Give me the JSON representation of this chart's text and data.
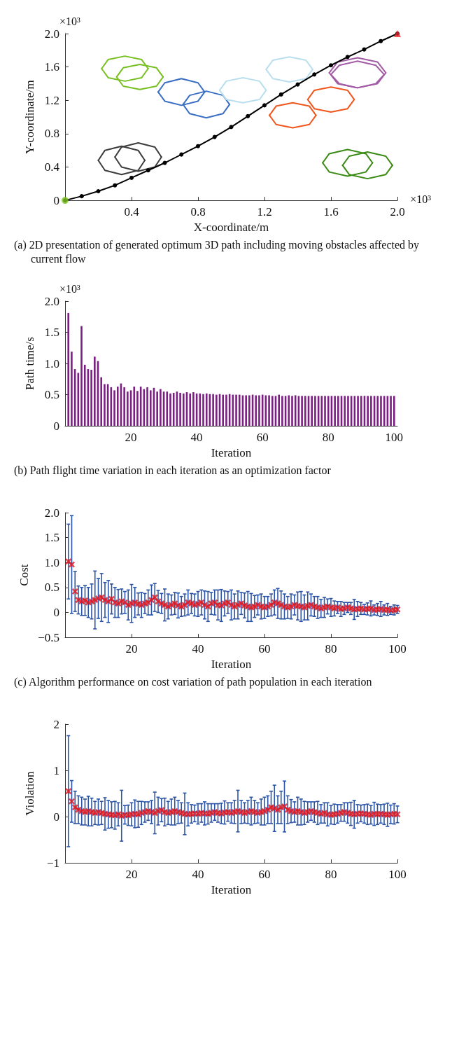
{
  "chart_data": [
    {
      "type": "line",
      "xlabel": "X-coordinate/m",
      "ylabel": "Y-coordinate/m",
      "xlim": [
        0,
        2
      ],
      "ylim": [
        0,
        2
      ],
      "xticks": [
        0.4,
        0.8,
        1.2,
        1.6,
        {
          "value": 2,
          "label": "2.0"
        }
      ],
      "yticks": [
        0,
        0.4,
        0.8,
        1.2,
        1.6,
        {
          "value": 2,
          "label": "2.0"
        }
      ],
      "annotations": [
        "×10³",
        "×10³",
        "(a) 2D presentation of generated optimum 3D path including moving obstacles affected by current flow"
      ],
      "series": [
        {
          "color": "#78c021",
          "marker": "none",
          "x": [
            0.22,
            0.26,
            0.36,
            0.46,
            0.5
          ],
          "values": [
            1.58,
            1.69,
            1.73,
            1.69,
            1.58
          ]
        },
        {
          "color": "#78c021",
          "marker": "none",
          "x": [
            0.22,
            0.26,
            0.36,
            0.46,
            0.5
          ],
          "values": [
            1.58,
            1.47,
            1.43,
            1.47,
            1.58
          ]
        },
        {
          "color": "#78c021",
          "marker": "none",
          "x": [
            0.31,
            0.35,
            0.45,
            0.55,
            0.59
          ],
          "values": [
            1.48,
            1.59,
            1.63,
            1.59,
            1.48
          ]
        },
        {
          "color": "#78c021",
          "marker": "none",
          "x": [
            0.31,
            0.35,
            0.45,
            0.55,
            0.59
          ],
          "values": [
            1.48,
            1.37,
            1.33,
            1.37,
            1.48
          ]
        },
        {
          "color": "#3a6fc4",
          "marker": "none",
          "x": [
            0.56,
            0.6,
            0.7,
            0.8,
            0.84
          ],
          "values": [
            1.3,
            1.41,
            1.46,
            1.41,
            1.3
          ]
        },
        {
          "color": "#3a6fc4",
          "marker": "none",
          "x": [
            0.56,
            0.6,
            0.7,
            0.8,
            0.84
          ],
          "values": [
            1.3,
            1.19,
            1.14,
            1.19,
            1.3
          ]
        },
        {
          "color": "#3a6fc4",
          "marker": "none",
          "x": [
            0.71,
            0.75,
            0.85,
            0.95,
            0.99
          ],
          "values": [
            1.15,
            1.26,
            1.31,
            1.26,
            1.15
          ]
        },
        {
          "color": "#3a6fc4",
          "marker": "none",
          "x": [
            0.71,
            0.75,
            0.85,
            0.95,
            0.99
          ],
          "values": [
            1.15,
            1.04,
            0.99,
            1.04,
            1.15
          ]
        },
        {
          "color": "#b9dfee",
          "marker": "none",
          "x": [
            0.93,
            0.97,
            1.07,
            1.17,
            1.21
          ],
          "values": [
            1.32,
            1.43,
            1.47,
            1.43,
            1.32
          ]
        },
        {
          "color": "#b9dfee",
          "marker": "none",
          "x": [
            0.93,
            0.97,
            1.07,
            1.17,
            1.21
          ],
          "values": [
            1.32,
            1.21,
            1.17,
            1.21,
            1.32
          ]
        },
        {
          "color": "#b9dfee",
          "marker": "none",
          "x": [
            1.21,
            1.25,
            1.35,
            1.45,
            1.49
          ],
          "values": [
            1.57,
            1.68,
            1.72,
            1.68,
            1.57
          ]
        },
        {
          "color": "#b9dfee",
          "marker": "none",
          "x": [
            1.21,
            1.25,
            1.35,
            1.45,
            1.49
          ],
          "values": [
            1.57,
            1.46,
            1.42,
            1.46,
            1.57
          ]
        },
        {
          "color": "#a25ba4",
          "marker": "none",
          "x": [
            1.59,
            1.64,
            1.76,
            1.88,
            1.93
          ],
          "values": [
            1.53,
            1.66,
            1.71,
            1.66,
            1.53
          ]
        },
        {
          "color": "#a25ba4",
          "marker": "none",
          "x": [
            1.59,
            1.64,
            1.76,
            1.88,
            1.93
          ],
          "values": [
            1.53,
            1.4,
            1.35,
            1.4,
            1.53
          ]
        },
        {
          "color": "#a25ba4",
          "marker": "none",
          "x": [
            1.6,
            1.65,
            1.76,
            1.87,
            1.92
          ],
          "values": [
            1.51,
            1.62,
            1.67,
            1.62,
            1.51
          ]
        },
        {
          "color": "#a25ba4",
          "marker": "none",
          "x": [
            1.6,
            1.65,
            1.76,
            1.87,
            1.92
          ],
          "values": [
            1.51,
            1.4,
            1.35,
            1.4,
            1.51
          ]
        },
        {
          "color": "#f0561e",
          "marker": "none",
          "x": [
            1.23,
            1.27,
            1.37,
            1.47,
            1.51
          ],
          "values": [
            1.02,
            1.13,
            1.17,
            1.13,
            1.02
          ]
        },
        {
          "color": "#f0561e",
          "marker": "none",
          "x": [
            1.23,
            1.27,
            1.37,
            1.47,
            1.51
          ],
          "values": [
            1.02,
            0.91,
            0.87,
            0.91,
            1.02
          ]
        },
        {
          "color": "#f0561e",
          "marker": "none",
          "x": [
            1.46,
            1.5,
            1.6,
            1.7,
            1.74
          ],
          "values": [
            1.21,
            1.32,
            1.36,
            1.32,
            1.21
          ]
        },
        {
          "color": "#f0561e",
          "marker": "none",
          "x": [
            1.46,
            1.5,
            1.6,
            1.7,
            1.74
          ],
          "values": [
            1.21,
            1.1,
            1.06,
            1.1,
            1.21
          ]
        },
        {
          "color": "#3c3c3c",
          "marker": "none",
          "x": [
            0.2,
            0.24,
            0.34,
            0.44,
            0.48
          ],
          "values": [
            0.48,
            0.6,
            0.65,
            0.6,
            0.48
          ]
        },
        {
          "color": "#3c3c3c",
          "marker": "none",
          "x": [
            0.2,
            0.24,
            0.34,
            0.44,
            0.48
          ],
          "values": [
            0.48,
            0.36,
            0.31,
            0.36,
            0.48
          ]
        },
        {
          "color": "#3c3c3c",
          "marker": "none",
          "x": [
            0.3,
            0.34,
            0.44,
            0.54,
            0.58
          ],
          "values": [
            0.52,
            0.64,
            0.69,
            0.64,
            0.52
          ]
        },
        {
          "color": "#3c3c3c",
          "marker": "none",
          "x": [
            0.3,
            0.34,
            0.44,
            0.54,
            0.58
          ],
          "values": [
            0.52,
            0.4,
            0.35,
            0.4,
            0.52
          ]
        },
        {
          "color": "#3a8a14",
          "marker": "none",
          "x": [
            1.55,
            1.59,
            1.7,
            1.81,
            1.85
          ],
          "values": [
            0.45,
            0.56,
            0.61,
            0.56,
            0.45
          ]
        },
        {
          "color": "#3a8a14",
          "marker": "none",
          "x": [
            1.55,
            1.59,
            1.7,
            1.81,
            1.85
          ],
          "values": [
            0.45,
            0.34,
            0.29,
            0.34,
            0.45
          ]
        },
        {
          "color": "#3a8a14",
          "marker": "none",
          "x": [
            1.67,
            1.71,
            1.82,
            1.93,
            1.97
          ],
          "values": [
            0.42,
            0.53,
            0.58,
            0.53,
            0.42
          ]
        },
        {
          "color": "#3a8a14",
          "marker": "none",
          "x": [
            1.67,
            1.71,
            1.82,
            1.93,
            1.97
          ],
          "values": [
            0.42,
            0.31,
            0.26,
            0.31,
            0.42
          ]
        },
        {
          "color": "#000000",
          "marker": "circle",
          "x": [
            0,
            0.1,
            0.2,
            0.3,
            0.4,
            0.5,
            0.6,
            0.7,
            0.8,
            0.9,
            1,
            1.1,
            1.2,
            1.3,
            1.4,
            1.5,
            1.6,
            1.7,
            1.8,
            1.9,
            2
          ],
          "values": [
            0,
            0.05,
            0.11,
            0.18,
            0.27,
            0.36,
            0.45,
            0.55,
            0.65,
            0.76,
            0.88,
            1.01,
            1.14,
            1.27,
            1.39,
            1.51,
            1.62,
            1.72,
            1.81,
            1.91,
            2
          ]
        },
        {
          "type": "scatter",
          "color": "#7cc623",
          "marker": "circle",
          "x": [
            0
          ],
          "values": [
            0
          ]
        },
        {
          "type": "scatter",
          "color": "#e8262a",
          "marker": "triangle",
          "x": [
            2
          ],
          "values": [
            2
          ]
        }
      ]
    },
    {
      "type": "bar",
      "xlabel": "Iteration",
      "ylabel": "Path time/s",
      "xlim": [
        0,
        101
      ],
      "ylim": [
        0,
        2
      ],
      "xticks": [
        20,
        40,
        60,
        80,
        100
      ],
      "yticks": [
        0,
        0.5,
        {
          "value": 1,
          "label": "1.0"
        },
        1.5,
        {
          "value": 2,
          "label": "2.0"
        }
      ],
      "annotations": [
        "×10³",
        "(b) Path flight time variation in each iteration as an optimization factor"
      ],
      "x": [
        1,
        2,
        3,
        4,
        5,
        6,
        7,
        8,
        9,
        10,
        11,
        12,
        13,
        14,
        15,
        16,
        17,
        18,
        19,
        20,
        21,
        22,
        23,
        24,
        25,
        26,
        27,
        28,
        29,
        30,
        31,
        32,
        33,
        34,
        35,
        36,
        37,
        38,
        39,
        40,
        41,
        42,
        43,
        44,
        45,
        46,
        47,
        48,
        49,
        50,
        51,
        52,
        53,
        54,
        55,
        56,
        57,
        58,
        59,
        60,
        61,
        62,
        63,
        64,
        65,
        66,
        67,
        68,
        69,
        70,
        71,
        72,
        73,
        74,
        75,
        76,
        77,
        78,
        79,
        80,
        81,
        82,
        83,
        84,
        85,
        86,
        87,
        88,
        89,
        90,
        91,
        92,
        93,
        94,
        95,
        96,
        97,
        98,
        99,
        100
      ],
      "series": [
        {
          "color": "#7b1f82",
          "values": [
            1.81,
            1.19,
            0.91,
            0.85,
            1.6,
            0.98,
            0.91,
            0.9,
            1.11,
            1.04,
            0.78,
            0.67,
            0.67,
            0.62,
            0.57,
            0.63,
            0.68,
            0.62,
            0.55,
            0.57,
            0.63,
            0.56,
            0.63,
            0.59,
            0.62,
            0.57,
            0.61,
            0.55,
            0.59,
            0.55,
            0.55,
            0.52,
            0.53,
            0.55,
            0.53,
            0.52,
            0.54,
            0.52,
            0.54,
            0.52,
            0.52,
            0.51,
            0.52,
            0.51,
            0.51,
            0.5,
            0.51,
            0.5,
            0.5,
            0.51,
            0.5,
            0.5,
            0.5,
            0.49,
            0.49,
            0.49,
            0.5,
            0.49,
            0.49,
            0.5,
            0.49,
            0.49,
            0.48,
            0.48,
            0.5,
            0.48,
            0.48,
            0.49,
            0.48,
            0.49,
            0.48,
            0.48,
            0.48,
            0.48,
            0.48,
            0.48,
            0.48,
            0.48,
            0.48,
            0.48,
            0.48,
            0.48,
            0.48,
            0.48,
            0.48,
            0.48,
            0.48,
            0.48,
            0.48,
            0.48,
            0.48,
            0.48,
            0.48,
            0.48,
            0.48,
            0.48,
            0.48,
            0.48,
            0.48,
            0.48
          ]
        }
      ]
    },
    {
      "type": "scatter",
      "xlabel": "Iteration",
      "ylabel": "Cost",
      "marker": "cross",
      "xlim": [
        0,
        100
      ],
      "ylim": [
        -0.5,
        2
      ],
      "xticks": [
        20,
        40,
        60,
        80,
        100
      ],
      "yticks": [
        {
          "value": -0.5,
          "label": "−0.5"
        },
        0,
        0.5,
        {
          "value": 1,
          "label": "1.0"
        },
        1.5,
        {
          "value": 2,
          "label": "2.0"
        }
      ],
      "annotations": [
        "(c) Algorithm performance on cost variation of path population in each iteration"
      ],
      "x": [
        1,
        2,
        3,
        4,
        5,
        6,
        7,
        8,
        9,
        10,
        11,
        12,
        13,
        14,
        15,
        16,
        17,
        18,
        19,
        20,
        21,
        22,
        23,
        24,
        25,
        26,
        27,
        28,
        29,
        30,
        31,
        32,
        33,
        34,
        35,
        36,
        37,
        38,
        39,
        40,
        41,
        42,
        43,
        44,
        45,
        46,
        47,
        48,
        49,
        50,
        51,
        52,
        53,
        54,
        55,
        56,
        57,
        58,
        59,
        60,
        61,
        62,
        63,
        64,
        65,
        66,
        67,
        68,
        69,
        70,
        71,
        72,
        73,
        74,
        75,
        76,
        77,
        78,
        79,
        80,
        81,
        82,
        83,
        84,
        85,
        86,
        87,
        88,
        89,
        90,
        91,
        92,
        93,
        94,
        95,
        96,
        97,
        98,
        99,
        100
      ],
      "series": [
        {
          "color": "#e0141e",
          "values": [
            1.02,
            0.96,
            0.42,
            0.25,
            0.22,
            0.24,
            0.2,
            0.22,
            0.25,
            0.28,
            0.3,
            0.25,
            0.22,
            0.27,
            0.2,
            0.18,
            0.22,
            0.2,
            0.15,
            0.18,
            0.2,
            0.17,
            0.15,
            0.18,
            0.2,
            0.25,
            0.3,
            0.22,
            0.18,
            0.15,
            0.12,
            0.15,
            0.18,
            0.14,
            0.12,
            0.15,
            0.2,
            0.18,
            0.15,
            0.17,
            0.2,
            0.15,
            0.12,
            0.18,
            0.2,
            0.15,
            0.14,
            0.18,
            0.2,
            0.15,
            0.12,
            0.15,
            0.18,
            0.14,
            0.12,
            0.1,
            0.12,
            0.15,
            0.12,
            0.1,
            0.12,
            0.15,
            0.2,
            0.18,
            0.15,
            0.12,
            0.1,
            0.12,
            0.15,
            0.13,
            0.12,
            0.1,
            0.13,
            0.15,
            0.12,
            0.1,
            0.08,
            0.1,
            0.12,
            0.1,
            0.08,
            0.1,
            0.07,
            0.08,
            0.1,
            0.08,
            0.06,
            0.07,
            0.08,
            0.06,
            0.07,
            0.08,
            0.05,
            0.06,
            0.07,
            0.05,
            0.06,
            0.04,
            0.05,
            0.06
          ],
          "errors": [
            0.75,
            0.98,
            0.4,
            0.28,
            0.28,
            0.3,
            0.3,
            0.35,
            0.58,
            0.4,
            0.48,
            0.35,
            0.42,
            0.3,
            0.3,
            0.28,
            0.25,
            0.22,
            0.3,
            0.38,
            0.3,
            0.22,
            0.25,
            0.2,
            0.25,
            0.3,
            0.28,
            0.22,
            0.2,
            0.32,
            0.25,
            0.2,
            0.22,
            0.25,
            0.2,
            0.22,
            0.25,
            0.2,
            0.22,
            0.25,
            0.25,
            0.28,
            0.3,
            0.22,
            0.25,
            0.3,
            0.32,
            0.25,
            0.22,
            0.3,
            0.25,
            0.28,
            0.22,
            0.25,
            0.3,
            0.28,
            0.22,
            0.2,
            0.25,
            0.22,
            0.2,
            0.22,
            0.25,
            0.3,
            0.28,
            0.25,
            0.22,
            0.25,
            0.2,
            0.28,
            0.3,
            0.25,
            0.28,
            0.22,
            0.2,
            0.22,
            0.18,
            0.2,
            0.15,
            0.18,
            0.15,
            0.12,
            0.15,
            0.12,
            0.1,
            0.12,
            0.2,
            0.15,
            0.12,
            0.1,
            0.12,
            0.15,
            0.1,
            0.12,
            0.15,
            0.1,
            0.12,
            0.08,
            0.1,
            0.08
          ]
        }
      ]
    },
    {
      "type": "scatter",
      "xlabel": "Iteration",
      "ylabel": "Violation",
      "marker": "cross",
      "xlim": [
        0,
        100
      ],
      "ylim": [
        -1,
        2
      ],
      "xticks": [
        20,
        40,
        60,
        80,
        100
      ],
      "yticks": [
        {
          "value": -1,
          "label": "−1"
        },
        0,
        1,
        2
      ],
      "x": [
        1,
        2,
        3,
        4,
        5,
        6,
        7,
        8,
        9,
        10,
        11,
        12,
        13,
        14,
        15,
        16,
        17,
        18,
        19,
        20,
        21,
        22,
        23,
        24,
        25,
        26,
        27,
        28,
        29,
        30,
        31,
        32,
        33,
        34,
        35,
        36,
        37,
        38,
        39,
        40,
        41,
        42,
        43,
        44,
        45,
        46,
        47,
        48,
        49,
        50,
        51,
        52,
        53,
        54,
        55,
        56,
        57,
        58,
        59,
        60,
        61,
        62,
        63,
        64,
        65,
        66,
        67,
        68,
        69,
        70,
        71,
        72,
        73,
        74,
        75,
        76,
        77,
        78,
        79,
        80,
        81,
        82,
        83,
        84,
        85,
        86,
        87,
        88,
        89,
        90,
        91,
        92,
        93,
        94,
        95,
        96,
        97,
        98,
        99,
        100
      ],
      "series": [
        {
          "color": "#e0141e",
          "values": [
            0.55,
            0.33,
            0.2,
            0.15,
            0.12,
            0.1,
            0.12,
            0.1,
            0.08,
            0.1,
            0.08,
            0.06,
            0.05,
            0.04,
            0.03,
            0.05,
            0.02,
            0.04,
            0.03,
            0.05,
            0.06,
            0.05,
            0.08,
            0.1,
            0.12,
            0.1,
            0.08,
            0.12,
            0.14,
            0.1,
            0.08,
            0.1,
            0.12,
            0.1,
            0.08,
            0.06,
            0.05,
            0.06,
            0.07,
            0.06,
            0.08,
            0.07,
            0.06,
            0.08,
            0.1,
            0.08,
            0.07,
            0.09,
            0.1,
            0.08,
            0.1,
            0.12,
            0.1,
            0.08,
            0.1,
            0.12,
            0.1,
            0.08,
            0.1,
            0.12,
            0.15,
            0.2,
            0.18,
            0.15,
            0.2,
            0.22,
            0.15,
            0.12,
            0.1,
            0.12,
            0.1,
            0.08,
            0.1,
            0.12,
            0.1,
            0.08,
            0.06,
            0.08,
            0.05,
            0.04,
            0.05,
            0.06,
            0.08,
            0.1,
            0.08,
            0.06,
            0.05,
            0.06,
            0.07,
            0.06,
            0.05,
            0.04,
            0.06,
            0.05,
            0.06,
            0.05,
            0.04,
            0.05,
            0.06,
            0.05
          ],
          "errors": [
            1.2,
            0.45,
            0.35,
            0.3,
            0.3,
            0.28,
            0.32,
            0.3,
            0.25,
            0.28,
            0.25,
            0.35,
            0.3,
            0.28,
            0.3,
            0.25,
            0.55,
            0.2,
            0.22,
            0.25,
            0.3,
            0.28,
            0.25,
            0.22,
            0.2,
            0.25,
            0.45,
            0.3,
            0.25,
            0.3,
            0.25,
            0.28,
            0.3,
            0.25,
            0.22,
            0.45,
            0.25,
            0.2,
            0.18,
            0.22,
            0.2,
            0.25,
            0.22,
            0.2,
            0.18,
            0.2,
            0.22,
            0.25,
            0.2,
            0.22,
            0.25,
            0.45,
            0.25,
            0.22,
            0.25,
            0.3,
            0.25,
            0.22,
            0.28,
            0.3,
            0.3,
            0.35,
            0.5,
            0.3,
            0.35,
            0.55,
            0.3,
            0.25,
            0.22,
            0.3,
            0.28,
            0.25,
            0.22,
            0.2,
            0.22,
            0.25,
            0.2,
            0.22,
            0.25,
            0.2,
            0.22,
            0.2,
            0.18,
            0.2,
            0.22,
            0.25,
            0.3,
            0.2,
            0.18,
            0.2,
            0.22,
            0.2,
            0.25,
            0.22,
            0.2,
            0.22,
            0.25,
            0.2,
            0.22,
            0.18
          ]
        }
      ]
    }
  ]
}
